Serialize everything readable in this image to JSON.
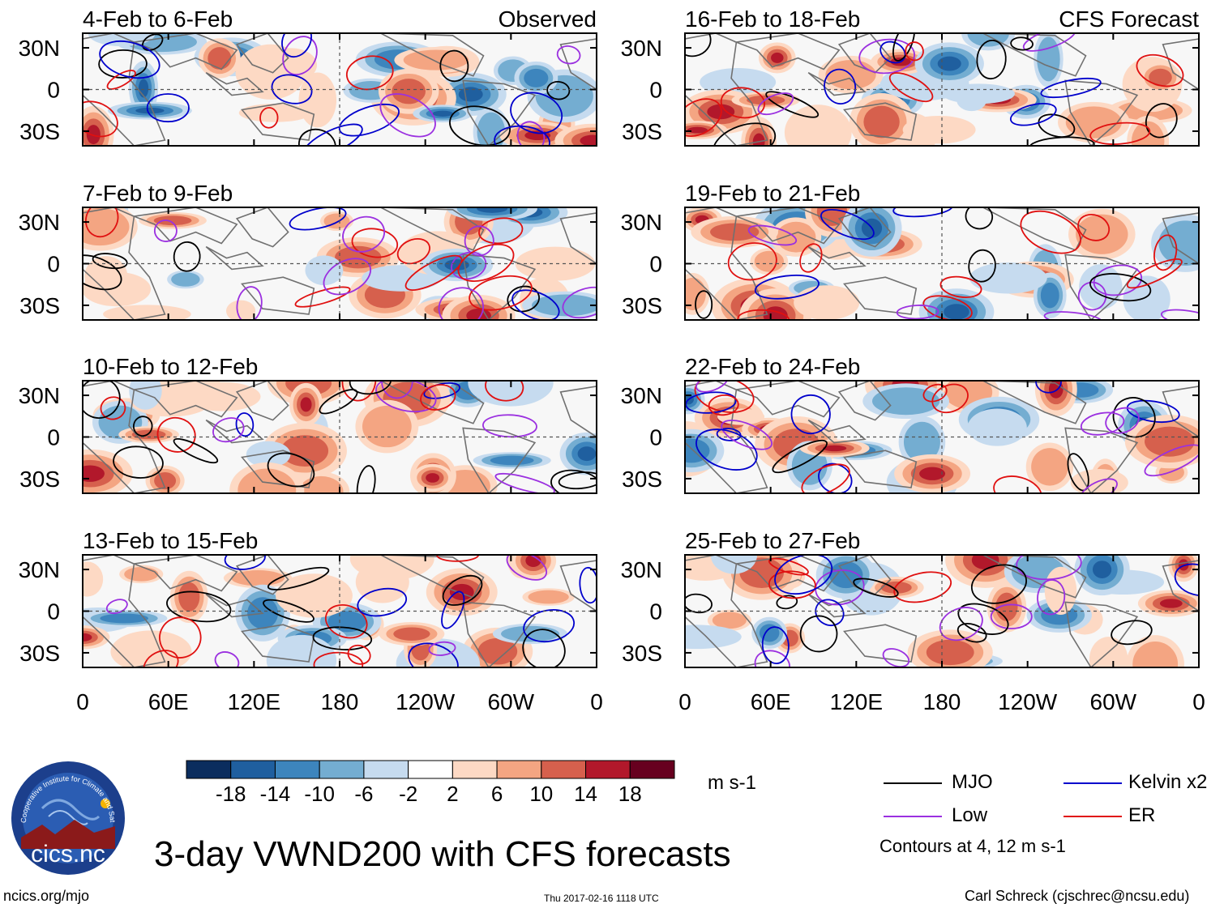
{
  "title": "3-day VWND200 with CFS forecasts",
  "footer": {
    "left": "ncics.org/mjo",
    "center": "Thu 2017-02-16 1118 UTC",
    "right": "Carl Schreck (cjschrec@ncsu.edu)"
  },
  "logo": {
    "text": "cics.nc",
    "ring_text": "Cooperative Institute for Climate and Satellites"
  },
  "colors": {
    "colorbar": [
      "#0b2d5e",
      "#1f5f9f",
      "#3d85bd",
      "#74add1",
      "#c6dbef",
      "#ffffff",
      "#fdd9c4",
      "#f4a582",
      "#d6604d",
      "#b2182b",
      "#67001f"
    ],
    "mjo": "#000000",
    "kelvin": "#0000cc",
    "low": "#9b30e0",
    "er": "#e01010",
    "land": "#707070"
  },
  "colorbar": {
    "units": "m s-1",
    "ticks": [
      "-18",
      "-14",
      "-10",
      "-6",
      "-2",
      "2",
      "6",
      "10",
      "14",
      "18"
    ]
  },
  "legend": {
    "items": [
      {
        "label": "MJO",
        "color": "#000000"
      },
      {
        "label": "Kelvin x2",
        "color": "#0000cc"
      },
      {
        "label": "Low",
        "color": "#9b30e0"
      },
      {
        "label": "ER",
        "color": "#e01010"
      }
    ],
    "note": "Contours at 4, 12 m s-1"
  },
  "chart_data": {
    "type": "heatmap",
    "variable": "VWND200",
    "x_ticks": [
      "0",
      "60E",
      "120E",
      "180",
      "120W",
      "60W",
      "0"
    ],
    "y_ticks": [
      "30N",
      "0",
      "30S"
    ],
    "columns": [
      {
        "header": "Observed",
        "periods": [
          "4-Feb to 6-Feb",
          "7-Feb to 9-Feb",
          "10-Feb to 12-Feb",
          "13-Feb to 15-Feb"
        ]
      },
      {
        "header": "CFS Forecast",
        "periods": [
          "16-Feb to 18-Feb",
          "19-Feb to 21-Feb",
          "22-Feb to 24-Feb",
          "25-Feb to 27-Feb"
        ]
      }
    ],
    "contour_levels": [
      4,
      12
    ]
  }
}
